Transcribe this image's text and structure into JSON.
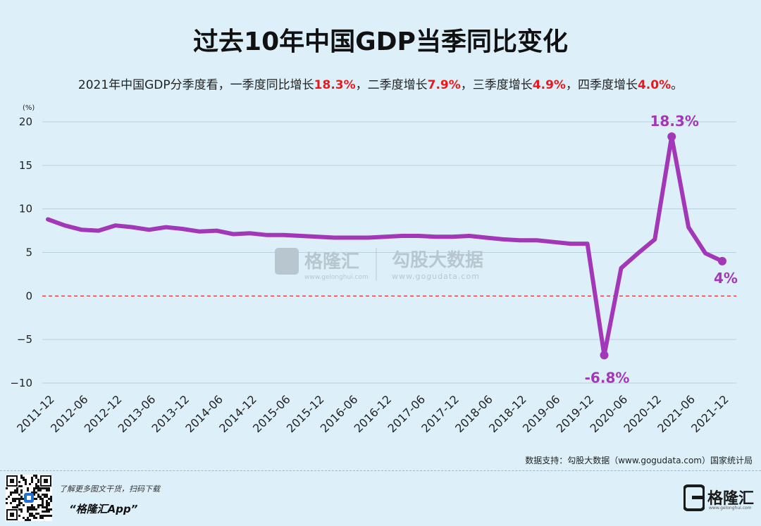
{
  "title": "过去10年中国GDP当季同比变化",
  "subtitle": {
    "prefix": "2021年中国GDP分季度看，一季度同比增长",
    "q1": "18.3%",
    "mid1": "，二季度增长",
    "q2": "7.9%",
    "mid2": "，三季度增长",
    "q3": "4.9%",
    "mid3": "，四季度增长",
    "q4": "4.0%",
    "suffix": "。"
  },
  "chart_data": {
    "type": "line",
    "unit_label": "(%)",
    "y_ticks": [
      20,
      15,
      10,
      5,
      0,
      -5,
      -10
    ],
    "y_tick_labels": [
      "20",
      "15",
      "10",
      "5",
      "0",
      "−5",
      "−10"
    ],
    "ylim": [
      -10,
      20
    ],
    "grid": true,
    "zero_line": {
      "value": 0,
      "style": "dashed",
      "color": "#e8191e"
    },
    "line_color": "#a238b8",
    "x": [
      "2011-12",
      "2012-03",
      "2012-06",
      "2012-09",
      "2012-12",
      "2013-03",
      "2013-06",
      "2013-09",
      "2013-12",
      "2014-03",
      "2014-06",
      "2014-09",
      "2014-12",
      "2015-03",
      "2015-06",
      "2015-09",
      "2015-12",
      "2016-03",
      "2016-06",
      "2016-09",
      "2016-12",
      "2017-03",
      "2017-06",
      "2017-09",
      "2017-12",
      "2018-03",
      "2018-06",
      "2018-09",
      "2018-12",
      "2019-03",
      "2019-06",
      "2019-09",
      "2019-12",
      "2020-03",
      "2020-06",
      "2020-09",
      "2020-12",
      "2021-03",
      "2021-06",
      "2021-09",
      "2021-12"
    ],
    "x_tick_labels": [
      "2011-12",
      "2012-06",
      "2012-12",
      "2013-06",
      "2013-12",
      "2014-06",
      "2014-12",
      "2015-06",
      "2015-12",
      "2016-06",
      "2016-12",
      "2017-06",
      "2017-12",
      "2018-06",
      "2018-12",
      "2019-06",
      "2019-12",
      "2020-06",
      "2020-12",
      "2021-06",
      "2021-12"
    ],
    "values": [
      8.8,
      8.1,
      7.6,
      7.5,
      8.1,
      7.9,
      7.6,
      7.9,
      7.7,
      7.4,
      7.5,
      7.1,
      7.2,
      7.0,
      7.0,
      6.9,
      6.8,
      6.7,
      6.7,
      6.7,
      6.8,
      6.9,
      6.9,
      6.8,
      6.8,
      6.9,
      6.7,
      6.5,
      6.4,
      6.4,
      6.2,
      6.0,
      6.0,
      -6.8,
      3.2,
      4.9,
      6.5,
      18.3,
      7.9,
      4.9,
      4.0
    ],
    "annotations": [
      {
        "label": "-6.8%",
        "index": 33
      },
      {
        "label": "18.3%",
        "index": 37
      },
      {
        "label": "4%",
        "index": 40
      }
    ]
  },
  "source": "数据支持：勾股大数据（www.gogudata.com）国家统计局",
  "watermark": {
    "brand": "格隆汇",
    "brand_url": "www.gelonghui.com",
    "partner": "勾股大数据",
    "partner_url": "www.gogudata.com"
  },
  "footer": {
    "promo_line": "了解更多图文干货，扫码下载",
    "app_name": "“格隆汇App”",
    "logo_name": "格隆汇",
    "logo_url": "www.gelonghui.com"
  }
}
